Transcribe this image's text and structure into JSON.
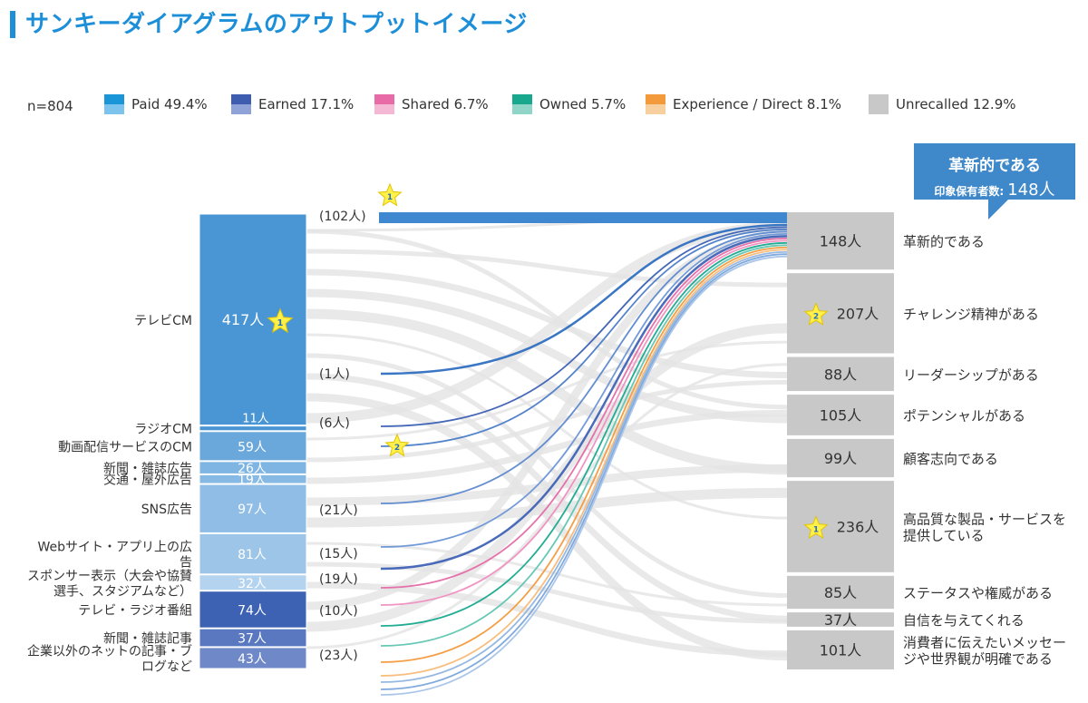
{
  "title": "サンキーダイアグラムのアウトプットイメージ",
  "legend": {
    "n": "n=804",
    "items": [
      {
        "label": "Paid 49.4%",
        "color": "#1a95d8",
        "light": "#7cc3ee"
      },
      {
        "label": "Earned 17.1%",
        "color": "#3e5db0",
        "light": "#8fa3d8"
      },
      {
        "label": "Shared 6.7%",
        "color": "#e86aa6",
        "light": "#f4b8d4"
      },
      {
        "label": "Owned 5.7%",
        "color": "#17a88e",
        "light": "#8fd6c8"
      },
      {
        "label": "Experience / Direct 8.1%",
        "color": "#f39a3c",
        "light": "#f8cf9f"
      },
      {
        "label": "Unrecalled 12.9%",
        "color": "#c8c8c8",
        "light": "#c8c8c8"
      }
    ]
  },
  "callout": {
    "line1": "革新的である",
    "line2": "印象保有者数:",
    "value": "148人"
  },
  "chart_data": {
    "type": "sankey",
    "title": "サンキーダイアグラムのアウトプットイメージ",
    "sources": [
      {
        "label": "テレビCM",
        "value": 417,
        "value_label": "417人",
        "rank": "1",
        "color": "#4a96d4"
      },
      {
        "label": "ラジオCM",
        "value": 11,
        "value_label": "11人",
        "color": "#4a96d4"
      },
      {
        "label": "動画配信サービスのCM",
        "value": 59,
        "value_label": "59人",
        "color": "#6aa8dc"
      },
      {
        "label": "新聞・雑誌広告",
        "value": 26,
        "value_label": "26人",
        "color": "#7fb5e2"
      },
      {
        "label": "交通・屋外広告",
        "value": 19,
        "value_label": "19人",
        "color": "#86b9e3"
      },
      {
        "label": "SNS広告",
        "value": 97,
        "value_label": "97人",
        "color": "#8fbde5"
      },
      {
        "label": "Webサイト・アプリ上の広告",
        "value": 81,
        "value_label": "81人",
        "color": "#9cc5e8"
      },
      {
        "label": "スポンサー表示（大会や協賛選手、スタジアムなど）",
        "value": 32,
        "value_label": "32人",
        "color": "#b3d3ee"
      },
      {
        "label": "テレビ・ラジオ番組",
        "value": 74,
        "value_label": "74人",
        "color": "#3e62b3"
      },
      {
        "label": "新聞・雑誌記事",
        "value": 37,
        "value_label": "37人",
        "color": "#5a78c0"
      },
      {
        "label": "企業以外のネットの記事・ブログなど",
        "value": 43,
        "value_label": "43人",
        "color": "#6f88c8"
      }
    ],
    "targets": [
      {
        "label": "革新的である",
        "value": 148,
        "value_label": "148人"
      },
      {
        "label": "チャレンジ精神がある",
        "value": 207,
        "value_label": "207人",
        "rank": "2"
      },
      {
        "label": "リーダーシップがある",
        "value": 88,
        "value_label": "88人"
      },
      {
        "label": "ポテンシャルがある",
        "value": 105,
        "value_label": "105人"
      },
      {
        "label": "顧客志向である",
        "value": 99,
        "value_label": "99人"
      },
      {
        "label": "高品質な製品・サービスを提供している",
        "value": 236,
        "value_label": "236人",
        "rank": "1"
      },
      {
        "label": "ステータスや権威がある",
        "value": 85,
        "value_label": "85人"
      },
      {
        "label": "自信を与えてくれる",
        "value": 37,
        "value_label": "37人"
      },
      {
        "label": "消費者に伝えたいメッセージや世界観が明確である",
        "value": 101,
        "value_label": "101人"
      }
    ],
    "highlighted_flows_to": "革新的である",
    "flow_annotations": [
      {
        "from": "テレビCM",
        "value": 102,
        "label": "(102人)",
        "rank": "1"
      },
      {
        "from": "ラジオCM",
        "value": 1,
        "label": "(1人)"
      },
      {
        "from": "動画配信サービスのCM",
        "value": 6,
        "label": "(6人)",
        "rank": "2"
      },
      {
        "from": "SNS広告",
        "value": 21,
        "label": "(21人)"
      },
      {
        "from": "Webサイト・アプリ上の広告",
        "value": 15,
        "label": "(15人)"
      },
      {
        "from": "テレビ・ラジオ番組",
        "value": 19,
        "label": "(19人)"
      },
      {
        "from": "新聞・雑誌記事",
        "value": 10,
        "label": "(10人)"
      },
      {
        "from": "企業以外のネットの記事・ブログなど",
        "value": 23,
        "label": "(23人)"
      }
    ]
  }
}
